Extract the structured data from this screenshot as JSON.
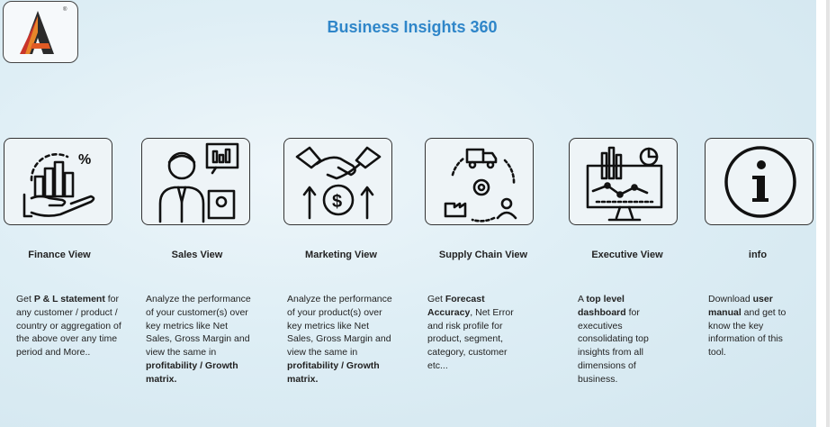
{
  "app": {
    "title": "Business Insights 360",
    "logo_mark": "®"
  },
  "cards": [
    {
      "id": "finance",
      "label": "Finance View",
      "icon": "finance-chart-hand-icon",
      "desc": [
        {
          "t": "Get "
        },
        {
          "t": "P & L statement",
          "b": true
        },
        {
          "t": " for any customer / product / country or aggregation of the above over any time period and More.."
        }
      ]
    },
    {
      "id": "sales",
      "label": "Sales View",
      "icon": "salesperson-icon",
      "desc": [
        {
          "t": "Analyze the performance of your customer(s) over key metrics like Net Sales, Gross Margin and view the same in "
        },
        {
          "t": "profitability / Growth matrix.",
          "b": true
        }
      ]
    },
    {
      "id": "marketing",
      "label": "Marketing View",
      "icon": "handshake-coin-icon",
      "desc": [
        {
          "t": "Analyze the performance of your product(s) over key metrics like Net Sales, Gross Margin and view the same in "
        },
        {
          "t": "profitability / Growth matrix.",
          "b": true
        }
      ]
    },
    {
      "id": "supply",
      "label": "Supply Chain View",
      "icon": "supply-cycle-icon",
      "desc": [
        {
          "t": "Get "
        },
        {
          "t": "Forecast Accuracy",
          "b": true
        },
        {
          "t": ", Net Error and risk profile for product, segment, category, customer etc..."
        }
      ]
    },
    {
      "id": "executive",
      "label": "Executive View",
      "icon": "dashboard-monitor-icon",
      "desc": [
        {
          "t": "A "
        },
        {
          "t": "top level dashboard",
          "b": true
        },
        {
          "t": " for executives consolidating top insights from all dimensions of business."
        }
      ]
    },
    {
      "id": "info",
      "label": "info",
      "icon": "info-icon",
      "desc": [
        {
          "t": "Download "
        },
        {
          "t": "user manual",
          "b": true
        },
        {
          "t": " and get to know the key information of this tool."
        }
      ]
    }
  ]
}
